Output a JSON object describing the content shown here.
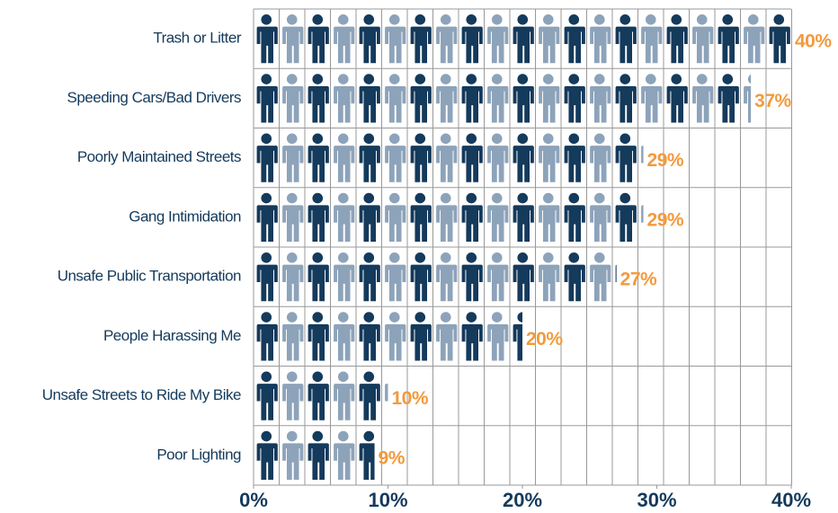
{
  "chart_data": {
    "type": "pictograph",
    "categories": [
      "Trash or Litter",
      "Speeding Cars/Bad Drivers",
      "Poorly Maintained Streets",
      "Gang Intimidation",
      "Unsafe Public Transportation",
      "People Harassing Me",
      "Unsafe Streets to Ride My Bike",
      "Poor Lighting"
    ],
    "values": [
      40,
      37,
      29,
      29,
      27,
      20,
      10,
      9
    ],
    "value_labels": [
      "40%",
      "37%",
      "29%",
      "29%",
      "27%",
      "20%",
      "10%",
      "9%"
    ],
    "colors": [
      "#143a5c",
      "#8da3ba"
    ],
    "label_color": "#f39a3c",
    "xlim": [
      0,
      40
    ],
    "xticks": [
      {
        "value": 0,
        "label": "0%"
      },
      {
        "value": 10,
        "label": "10%"
      },
      {
        "value": 20,
        "label": "20%"
      },
      {
        "value": 30,
        "label": "30%"
      },
      {
        "value": 40,
        "label": "40%"
      }
    ],
    "grid": true
  }
}
